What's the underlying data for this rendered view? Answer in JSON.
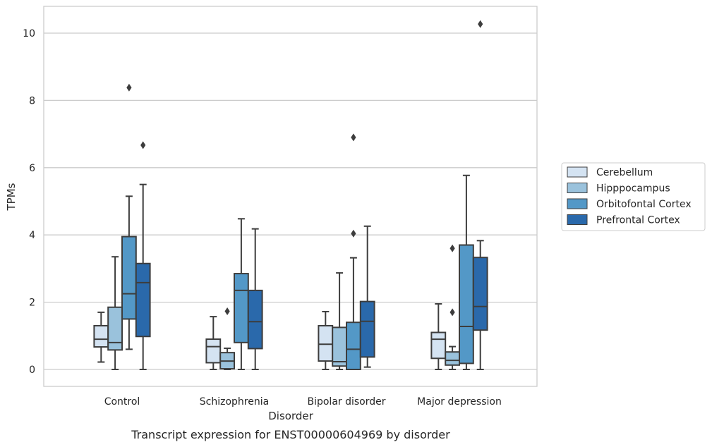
{
  "chart_data": {
    "type": "box",
    "title": "",
    "caption": "Transcript expression for ENST00000604969 by disorder",
    "xlabel": "Disorder",
    "ylabel": "TPMs",
    "ylim": [
      -0.5,
      10.8
    ],
    "yticks": [
      0,
      2,
      4,
      6,
      8,
      10
    ],
    "grid": "horizontal",
    "legend_position": "right",
    "categories": [
      "Control",
      "Schizophrenia",
      "Bipolar disorder",
      "Major depression"
    ],
    "series": [
      {
        "name": "Cerebellum",
        "color": "#d4e3f2",
        "boxes": [
          {
            "whisker_low": 0.22,
            "q1": 0.67,
            "median": 0.9,
            "q3": 1.3,
            "whisker_high": 1.7,
            "outliers": []
          },
          {
            "whisker_low": 0.0,
            "q1": 0.2,
            "median": 0.68,
            "q3": 0.9,
            "whisker_high": 1.57,
            "outliers": []
          },
          {
            "whisker_low": 0.0,
            "q1": 0.25,
            "median": 0.75,
            "q3": 1.3,
            "whisker_high": 1.72,
            "outliers": []
          },
          {
            "whisker_low": 0.0,
            "q1": 0.33,
            "median": 0.9,
            "q3": 1.1,
            "whisker_high": 1.95,
            "outliers": []
          }
        ]
      },
      {
        "name": "Hipppocampus",
        "color": "#9ac2dc",
        "boxes": [
          {
            "whisker_low": 0.0,
            "q1": 0.58,
            "median": 0.8,
            "q3": 1.85,
            "whisker_high": 3.35,
            "outliers": []
          },
          {
            "whisker_low": 0.0,
            "q1": 0.02,
            "median": 0.25,
            "q3": 0.5,
            "whisker_high": 0.63,
            "outliers": [
              1.73
            ]
          },
          {
            "whisker_low": 0.0,
            "q1": 0.1,
            "median": 0.23,
            "q3": 1.25,
            "whisker_high": 2.87,
            "outliers": []
          },
          {
            "whisker_low": 0.0,
            "q1": 0.13,
            "median": 0.27,
            "q3": 0.52,
            "whisker_high": 0.68,
            "outliers": [
              1.7,
              3.6
            ]
          }
        ]
      },
      {
        "name": "Orbitofontal Cortex",
        "color": "#5398c7",
        "boxes": [
          {
            "whisker_low": 0.6,
            "q1": 1.5,
            "median": 2.25,
            "q3": 3.95,
            "whisker_high": 5.15,
            "outliers": [
              8.38
            ]
          },
          {
            "whisker_low": 0.0,
            "q1": 0.8,
            "median": 2.35,
            "q3": 2.85,
            "whisker_high": 4.48,
            "outliers": []
          },
          {
            "whisker_low": 0.0,
            "q1": 0.0,
            "median": 0.6,
            "q3": 1.4,
            "whisker_high": 3.32,
            "outliers": [
              4.04,
              6.9
            ]
          },
          {
            "whisker_low": 0.0,
            "q1": 0.18,
            "median": 1.28,
            "q3": 3.7,
            "whisker_high": 5.77,
            "outliers": []
          }
        ]
      },
      {
        "name": "Prefrontal Cortex",
        "color": "#2a69ab",
        "boxes": [
          {
            "whisker_low": 0.0,
            "q1": 0.98,
            "median": 2.58,
            "q3": 3.15,
            "whisker_high": 5.5,
            "outliers": [
              6.67
            ]
          },
          {
            "whisker_low": 0.0,
            "q1": 0.62,
            "median": 1.42,
            "q3": 2.35,
            "whisker_high": 4.18,
            "outliers": []
          },
          {
            "whisker_low": 0.07,
            "q1": 0.37,
            "median": 1.43,
            "q3": 2.02,
            "whisker_high": 4.26,
            "outliers": []
          },
          {
            "whisker_low": 0.0,
            "q1": 1.17,
            "median": 1.87,
            "q3": 3.33,
            "whisker_high": 3.83,
            "outliers": [
              10.27
            ]
          }
        ]
      }
    ]
  }
}
